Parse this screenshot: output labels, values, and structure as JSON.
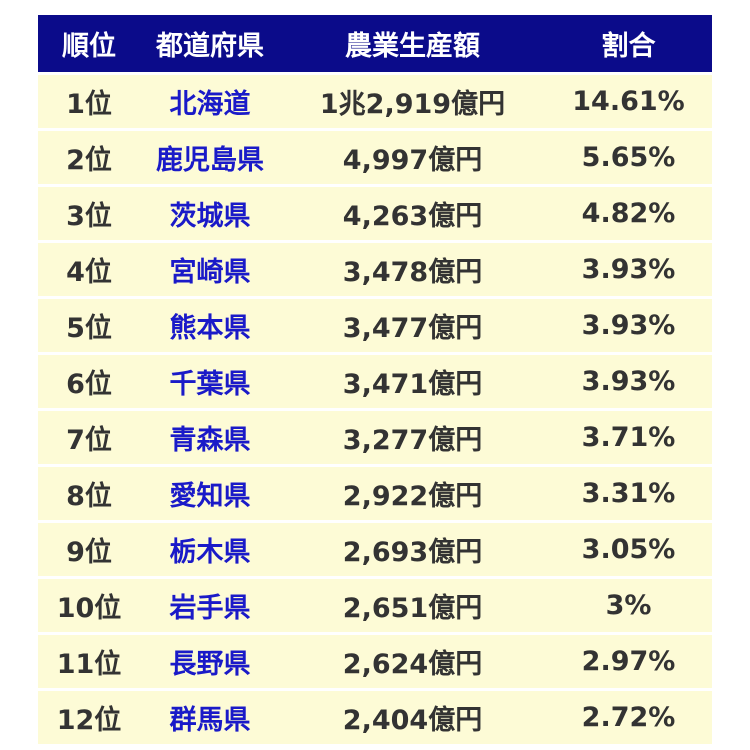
{
  "table": {
    "header": [
      "順位",
      "都道府県",
      "農業生産額",
      "割合"
    ],
    "rows": [
      [
        "1位",
        "北海道",
        "1兆2,919億円",
        "14.61%"
      ],
      [
        "2位",
        "鹿児島県",
        "4,997億円",
        "5.65%"
      ],
      [
        "3位",
        "茨城県",
        "4,263億円",
        "4.82%"
      ],
      [
        "4位",
        "宮崎県",
        "3,478億円",
        "3.93%"
      ],
      [
        "5位",
        "熊本県",
        "3,477億円",
        "3.93%"
      ],
      [
        "6位",
        "千葉県",
        "3,471億円",
        "3.93%"
      ],
      [
        "7位",
        "青森県",
        "3,277億円",
        "3.71%"
      ],
      [
        "8位",
        "愛知県",
        "2,922億円",
        "3.31%"
      ],
      [
        "9位",
        "栃木県",
        "2,693億円",
        "3.05%"
      ],
      [
        "10位",
        "岩手県",
        "2,651億円",
        "3%"
      ],
      [
        "11位",
        "長野県",
        "2,624億円",
        "2.97%"
      ],
      [
        "12位",
        "群馬県",
        "2,404億円",
        "2.72%"
      ]
    ]
  }
}
